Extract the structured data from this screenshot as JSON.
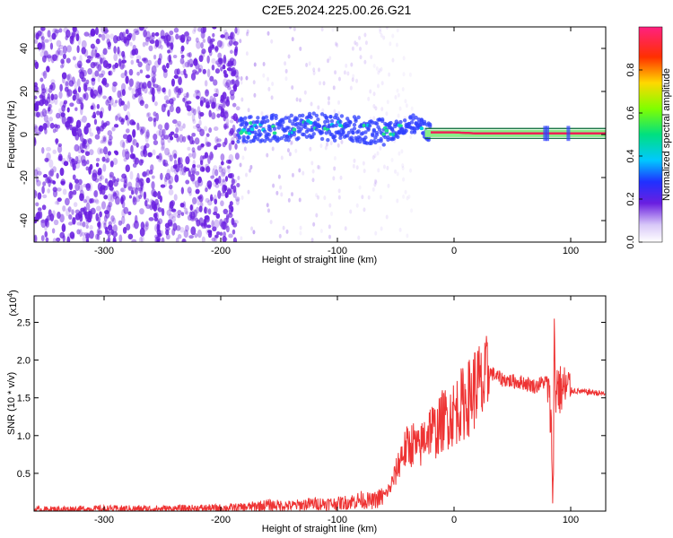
{
  "title": "C2E5.2024.225.00.26.G21",
  "colors": {
    "snr_line": "#ee3333",
    "noise": "#6a1fe0",
    "track": "#ee2255",
    "track_edge": "#006633"
  },
  "chart_data": [
    {
      "type": "heatmap",
      "name": "spectrogram",
      "xlabel": "Height of straight line (km)",
      "ylabel": "Frequency (Hz)",
      "xlim": [
        -360,
        130
      ],
      "ylim": [
        -50,
        50
      ],
      "xticks": [
        -300,
        -200,
        -100,
        0,
        100
      ],
      "yticks": [
        -40,
        -20,
        0,
        20,
        40
      ],
      "noise_region_x": [
        -360,
        -185
      ],
      "tracked_signal": {
        "x": [
          -185,
          -160,
          -140,
          -120,
          -100,
          -80,
          -60,
          -50,
          -40,
          -35,
          -30,
          -25,
          -20,
          0,
          20,
          60,
          80,
          100,
          130
        ],
        "y": [
          2,
          3,
          3,
          4,
          3,
          2,
          1,
          2,
          5,
          5,
          4,
          2,
          1,
          1,
          0.5,
          0.5,
          0.5,
          0.5,
          0.5
        ]
      },
      "colorbar": {
        "label": "Normalized spectral amplitude",
        "range": [
          0,
          1
        ],
        "ticks": [
          0.0,
          0.2,
          0.4,
          0.6,
          0.8
        ],
        "tick_labels": [
          "0.0",
          "0.2",
          "0.4",
          "0.6",
          "0.8"
        ]
      }
    },
    {
      "type": "line",
      "name": "snr",
      "xlabel": "Height of straight line (km)",
      "ylabel": "SNR (10 * v/v)",
      "y_exponent_label": "(x10",
      "y_exponent_power": "4",
      "y_exponent_close": ")",
      "xlim": [
        -360,
        130
      ],
      "ylim": [
        0,
        2.85
      ],
      "xticks": [
        -300,
        -200,
        -100,
        0,
        100
      ],
      "yticks": [
        0.5,
        1.0,
        1.5,
        2.0,
        2.5
      ],
      "ytick_labels": [
        "0.5",
        "1.0",
        "1.5",
        "2.0",
        "2.5"
      ],
      "series": [
        {
          "x": [
            -360,
            -300,
            -250,
            -200,
            -180,
            -160,
            -140,
            -120,
            -100,
            -90,
            -80,
            -70,
            -60,
            -55,
            -50,
            -45,
            -40,
            -35,
            -30,
            -25,
            -20,
            -15,
            -10,
            -5,
            0,
            5,
            10,
            15,
            20,
            25,
            30,
            35,
            40,
            50,
            60,
            70,
            75,
            80,
            83,
            85,
            86,
            87,
            88,
            90,
            95,
            100,
            110,
            120,
            130
          ],
          "y": [
            0.02,
            0.03,
            0.03,
            0.04,
            0.05,
            0.08,
            0.07,
            0.1,
            0.1,
            0.12,
            0.15,
            0.13,
            0.2,
            0.3,
            0.5,
            0.75,
            0.85,
            0.9,
            0.8,
            1.0,
            1.1,
            1.05,
            1.2,
            1.25,
            1.3,
            1.4,
            1.45,
            1.55,
            1.7,
            1.6,
            1.85,
            1.8,
            1.75,
            1.72,
            1.7,
            1.65,
            1.7,
            1.72,
            1.2,
            0.2,
            2.6,
            1.4,
            1.75,
            1.6,
            1.62,
            1.6,
            1.58,
            1.57,
            1.55
          ]
        }
      ]
    }
  ]
}
